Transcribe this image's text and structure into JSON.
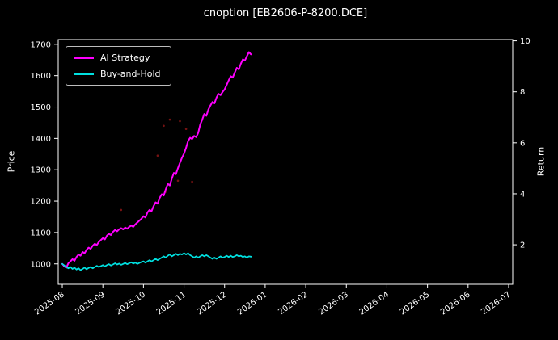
{
  "title": "cnoption [EB2606-P-8200.DCE]",
  "colors": {
    "background": "#000000",
    "text": "#ffffff",
    "spine": "#ffffff",
    "ai_strategy": "#ff00ff",
    "buy_and_hold": "#00e0e0",
    "trade_dots": "#8b1515"
  },
  "axes": {
    "left_label": "Price",
    "right_label": "Return",
    "left_ticks": [
      1000,
      1100,
      1200,
      1300,
      1400,
      1500,
      1600,
      1700
    ],
    "right_ticks": [
      2,
      4,
      6,
      8,
      10
    ]
  },
  "legend": {
    "items": [
      {
        "label": "AI Strategy",
        "color": "#ff00ff"
      },
      {
        "label": "Buy-and-Hold",
        "color": "#00e0e0"
      }
    ]
  },
  "chart_data": {
    "type": "line",
    "title": "cnoption [EB2606-P-8200.DCE]",
    "xlabel": "",
    "ylabel_left": "Price",
    "ylabel_right": "Return",
    "legend_position": "upper left",
    "grid": false,
    "x_unit": "months since 2025-08-01",
    "xlim": [
      -0.1,
      11.1
    ],
    "ylim_left": [
      935,
      1715
    ],
    "ylim_right": [
      0.45,
      10.05
    ],
    "x_tick_positions": [
      0,
      1,
      2,
      3,
      4,
      5,
      6,
      7,
      8,
      9,
      10,
      11
    ],
    "x_tick_labels": [
      "2025-08",
      "2025-09",
      "2025-10",
      "2025-11",
      "2025-12",
      "2026-01",
      "2026-02",
      "2026-03",
      "2026-04",
      "2026-05",
      "2026-06",
      "2026-07"
    ],
    "x": [
      0,
      0.05,
      0.1,
      0.15,
      0.2,
      0.25,
      0.3,
      0.35,
      0.4,
      0.45,
      0.5,
      0.55,
      0.6,
      0.65,
      0.7,
      0.75,
      0.8,
      0.85,
      0.9,
      0.95,
      1,
      1.05,
      1.1,
      1.15,
      1.2,
      1.25,
      1.3,
      1.35,
      1.4,
      1.45,
      1.5,
      1.55,
      1.6,
      1.65,
      1.7,
      1.75,
      1.8,
      1.85,
      1.9,
      1.95,
      2,
      2.05,
      2.1,
      2.15,
      2.2,
      2.25,
      2.3,
      2.35,
      2.4,
      2.45,
      2.5,
      2.55,
      2.6,
      2.65,
      2.7,
      2.75,
      2.8,
      2.85,
      2.9,
      2.95,
      3,
      3.05,
      3.1,
      3.15,
      3.2,
      3.25,
      3.3,
      3.35,
      3.4,
      3.45,
      3.5,
      3.55,
      3.6,
      3.65,
      3.7,
      3.75,
      3.8,
      3.85,
      3.9,
      3.95,
      4,
      4.05,
      4.1,
      4.15,
      4.2,
      4.25,
      4.3,
      4.35,
      4.4,
      4.45,
      4.5,
      4.55,
      4.6,
      4.65
    ],
    "series": [
      {
        "name": "AI Strategy",
        "color": "#ff00ff",
        "axis": "left",
        "values": [
          1000,
          992,
          988,
          1002,
          1008,
          1015,
          1010,
          1022,
          1030,
          1026,
          1038,
          1034,
          1045,
          1052,
          1048,
          1058,
          1064,
          1060,
          1070,
          1076,
          1082,
          1078,
          1090,
          1096,
          1092,
          1102,
          1108,
          1104,
          1110,
          1114,
          1110,
          1116,
          1112,
          1118,
          1122,
          1118,
          1126,
          1132,
          1138,
          1144,
          1152,
          1148,
          1164,
          1172,
          1168,
          1184,
          1196,
          1192,
          1210,
          1222,
          1218,
          1238,
          1255,
          1250,
          1272,
          1290,
          1286,
          1305,
          1322,
          1338,
          1352,
          1370,
          1392,
          1402,
          1398,
          1408,
          1404,
          1418,
          1444,
          1460,
          1478,
          1472,
          1492,
          1505,
          1516,
          1512,
          1530,
          1542,
          1538,
          1548,
          1556,
          1570,
          1585,
          1598,
          1594,
          1610,
          1625,
          1620,
          1638,
          1652,
          1648,
          1662,
          1675,
          1668
        ]
      },
      {
        "name": "Buy-and-Hold",
        "color": "#00e0e0",
        "axis": "left",
        "values": [
          1000,
          995,
          990,
          986,
          990,
          984,
          988,
          982,
          986,
          980,
          984,
          988,
          983,
          987,
          990,
          986,
          990,
          994,
          990,
          993,
          996,
          992,
          996,
          999,
          995,
          998,
          1002,
          998,
          1001,
          997,
          1000,
          1003,
          999,
          1002,
          1005,
          1001,
          1004,
          1000,
          1003,
          1006,
          1008,
          1004,
          1008,
          1012,
          1008,
          1012,
          1016,
          1012,
          1016,
          1020,
          1024,
          1020,
          1026,
          1030,
          1024,
          1028,
          1032,
          1028,
          1032,
          1030,
          1034,
          1030,
          1034,
          1028,
          1024,
          1020,
          1024,
          1020,
          1024,
          1028,
          1024,
          1028,
          1024,
          1020,
          1016,
          1020,
          1016,
          1020,
          1024,
          1020,
          1022,
          1026,
          1022,
          1026,
          1022,
          1024,
          1028,
          1024,
          1026,
          1022,
          1024,
          1020,
          1024,
          1023
        ]
      }
    ],
    "markers": {
      "name": "trade-dots",
      "color": "#8b1515",
      "points": [
        [
          1.45,
          1172
        ],
        [
          2.35,
          1345
        ],
        [
          2.5,
          1440
        ],
        [
          2.55,
          1230
        ],
        [
          2.65,
          1460
        ],
        [
          2.85,
          1265
        ],
        [
          2.9,
          1455
        ],
        [
          3.05,
          1430
        ],
        [
          3.2,
          1262
        ]
      ]
    }
  }
}
